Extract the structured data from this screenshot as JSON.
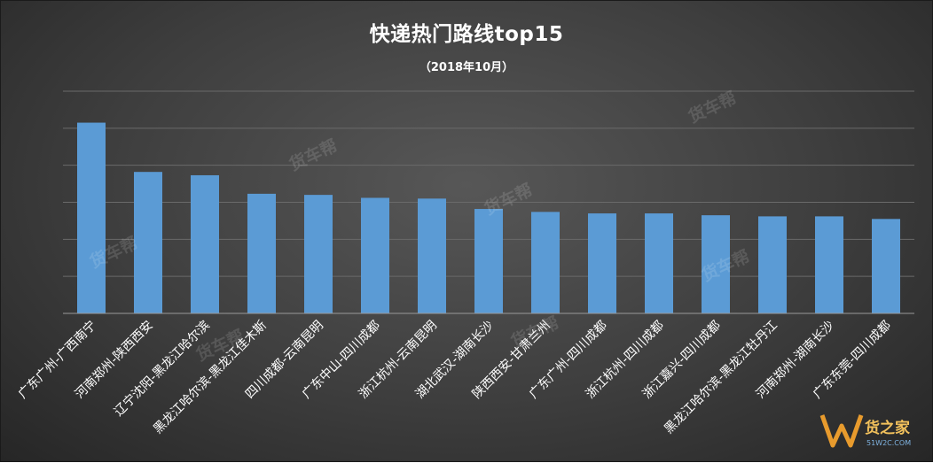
{
  "chart": {
    "title": "快递热门路线top15",
    "subtitle": "（2018年10月）"
  },
  "chart_data": {
    "type": "bar",
    "title": "快递热门路线top15",
    "subtitle": "（2018年10月）",
    "categories": [
      "广东广州-广西南宁",
      "河南郑州-陕西西安",
      "辽宁沈阳-黑龙江哈尔滨",
      "黑龙江哈尔滨-黑龙江佳木斯",
      "四川成都-云南昆明",
      "广东中山-四川成都",
      "浙江杭州-云南昆明",
      "湖北武汉-湖南长沙",
      "陕西西安-甘肃兰州",
      "广东广州-四川成都",
      "浙江杭州-四川成都",
      "浙江嘉兴-四川成都",
      "黑龙江哈尔滨-黑龙江牡丹江",
      "河南郑州-湖南长沙",
      "广东东莞-四川成都"
    ],
    "values": [
      5.15,
      3.82,
      3.73,
      3.23,
      3.2,
      3.12,
      3.1,
      2.82,
      2.74,
      2.7,
      2.7,
      2.65,
      2.62,
      2.62,
      2.55
    ],
    "ylim": [
      0,
      6
    ],
    "gridlines": 6,
    "show_y_tick_labels": false,
    "grid": true,
    "legend": "none",
    "bar_color": "#5b9bd5"
  },
  "watermark": {
    "text": "货车帮"
  },
  "logo": {
    "brand": "货之家",
    "domain": "51W2C.COM",
    "mark": "W"
  }
}
